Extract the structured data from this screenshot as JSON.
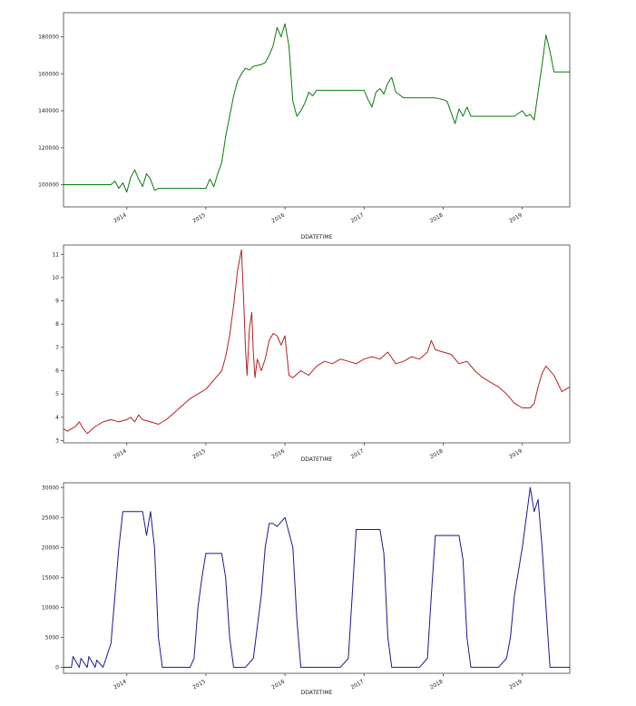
{
  "chart_data": [
    {
      "type": "line",
      "xlabel": "DDATETIME",
      "ylabel": "",
      "color": "#0a7a0a",
      "xlim": [
        2013.2,
        2019.6
      ],
      "ylim": [
        88000,
        193000
      ],
      "xticks": [
        {
          "x": 2014,
          "label": "2014"
        },
        {
          "x": 2015,
          "label": "2015"
        },
        {
          "x": 2016,
          "label": "2016"
        },
        {
          "x": 2017,
          "label": "2017"
        },
        {
          "x": 2018,
          "label": "2018"
        },
        {
          "x": 2019,
          "label": "2019"
        }
      ],
      "yticks": [
        {
          "y": 100000,
          "label": "100000"
        },
        {
          "y": 120000,
          "label": "120000"
        },
        {
          "y": 140000,
          "label": "140000"
        },
        {
          "y": 160000,
          "label": "160000"
        },
        {
          "y": 180000,
          "label": "180000"
        }
      ],
      "series": [
        {
          "x": [
            2013.2,
            2013.8,
            2013.85,
            2013.9,
            2013.95,
            2014.0,
            2014.05,
            2014.1,
            2014.15,
            2014.2,
            2014.25,
            2014.3,
            2014.35,
            2014.4,
            2014.7,
            2014.9,
            2015.0,
            2015.05,
            2015.1,
            2015.15,
            2015.2,
            2015.25,
            2015.3,
            2015.35,
            2015.4,
            2015.45,
            2015.5,
            2015.55,
            2015.6,
            2015.7,
            2015.75,
            2015.8,
            2015.85,
            2015.9,
            2015.95,
            2016.0,
            2016.05,
            2016.1,
            2016.15,
            2016.2,
            2016.25,
            2016.3,
            2016.35,
            2016.4,
            2016.5,
            2016.9,
            2017.0,
            2017.05,
            2017.1,
            2017.15,
            2017.2,
            2017.25,
            2017.3,
            2017.35,
            2017.4,
            2017.5,
            2017.9,
            2018.0,
            2018.05,
            2018.1,
            2018.15,
            2018.2,
            2018.25,
            2018.3,
            2018.35,
            2018.5,
            2018.9,
            2019.0,
            2019.05,
            2019.1,
            2019.15,
            2019.2,
            2019.25,
            2019.3,
            2019.35,
            2019.4,
            2019.6
          ],
          "y": [
            100000,
            100000,
            102000,
            98000,
            101000,
            96000,
            104000,
            108000,
            103000,
            99000,
            106000,
            103000,
            97000,
            98000,
            98000,
            98000,
            98000,
            103000,
            99000,
            106000,
            112000,
            126000,
            137000,
            148000,
            156000,
            160000,
            163000,
            162000,
            164000,
            165000,
            166000,
            170000,
            175000,
            185000,
            180000,
            187000,
            175000,
            145000,
            137000,
            140000,
            144000,
            150000,
            148000,
            151000,
            151000,
            151000,
            151000,
            146000,
            142000,
            150000,
            152000,
            149000,
            155000,
            158000,
            150000,
            147000,
            147000,
            146000,
            145000,
            139000,
            133000,
            141000,
            137000,
            142000,
            137000,
            137000,
            137000,
            140000,
            137000,
            138000,
            135000,
            150000,
            165000,
            181000,
            172000,
            161000,
            161000
          ]
        }
      ]
    },
    {
      "type": "line",
      "xlabel": "DDATETIME",
      "ylabel": "",
      "color": "#b22222",
      "xlim": [
        2013.2,
        2019.6
      ],
      "ylim": [
        2.9,
        11.4
      ],
      "xticks": [
        {
          "x": 2014,
          "label": "2014"
        },
        {
          "x": 2015,
          "label": "2015"
        },
        {
          "x": 2016,
          "label": "2016"
        },
        {
          "x": 2017,
          "label": "2017"
        },
        {
          "x": 2018,
          "label": "2018"
        },
        {
          "x": 2019,
          "label": "2019"
        }
      ],
      "yticks": [
        {
          "y": 3,
          "label": "3"
        },
        {
          "y": 4,
          "label": "4"
        },
        {
          "y": 5,
          "label": "5"
        },
        {
          "y": 6,
          "label": "6"
        },
        {
          "y": 7,
          "label": "7"
        },
        {
          "y": 8,
          "label": "8"
        },
        {
          "y": 9,
          "label": "9"
        },
        {
          "y": 10,
          "label": "10"
        },
        {
          "y": 11,
          "label": "11"
        }
      ],
      "series": [
        {
          "x": [
            2013.2,
            2013.25,
            2013.3,
            2013.35,
            2013.4,
            2013.45,
            2013.5,
            2013.6,
            2013.7,
            2013.8,
            2013.9,
            2014.0,
            2014.05,
            2014.1,
            2014.15,
            2014.2,
            2014.3,
            2014.4,
            2014.5,
            2014.6,
            2014.7,
            2014.8,
            2014.9,
            2015.0,
            2015.1,
            2015.2,
            2015.25,
            2015.3,
            2015.35,
            2015.4,
            2015.45,
            2015.48,
            2015.5,
            2015.52,
            2015.55,
            2015.58,
            2015.6,
            2015.62,
            2015.65,
            2015.7,
            2015.75,
            2015.8,
            2015.85,
            2015.9,
            2015.95,
            2016.0,
            2016.05,
            2016.1,
            2016.2,
            2016.3,
            2016.4,
            2016.5,
            2016.6,
            2016.7,
            2016.8,
            2016.9,
            2017.0,
            2017.1,
            2017.2,
            2017.3,
            2017.4,
            2017.5,
            2017.6,
            2017.7,
            2017.8,
            2017.85,
            2017.9,
            2018.0,
            2018.1,
            2018.2,
            2018.3,
            2018.4,
            2018.5,
            2018.6,
            2018.7,
            2018.8,
            2018.9,
            2019.0,
            2019.1,
            2019.15,
            2019.2,
            2019.25,
            2019.3,
            2019.4,
            2019.5,
            2019.6
          ],
          "y": [
            3.5,
            3.4,
            3.5,
            3.6,
            3.8,
            3.5,
            3.3,
            3.6,
            3.8,
            3.9,
            3.8,
            3.9,
            4.0,
            3.8,
            4.1,
            3.9,
            3.8,
            3.7,
            3.9,
            4.2,
            4.5,
            4.8,
            5.0,
            5.2,
            5.6,
            6.0,
            6.6,
            7.5,
            8.8,
            10.3,
            11.2,
            8.8,
            7.0,
            5.8,
            7.8,
            8.5,
            6.8,
            5.7,
            6.5,
            6.0,
            6.5,
            7.3,
            7.6,
            7.5,
            7.1,
            7.5,
            5.8,
            5.7,
            6.0,
            5.8,
            6.2,
            6.4,
            6.3,
            6.5,
            6.4,
            6.3,
            6.5,
            6.6,
            6.5,
            6.8,
            6.3,
            6.4,
            6.6,
            6.5,
            6.8,
            7.3,
            6.9,
            6.8,
            6.7,
            6.3,
            6.4,
            6.0,
            5.7,
            5.5,
            5.3,
            5.0,
            4.6,
            4.4,
            4.4,
            4.6,
            5.3,
            5.9,
            6.2,
            5.8,
            5.1,
            5.3
          ]
        }
      ]
    },
    {
      "type": "line",
      "xlabel": "DDATETIME",
      "ylabel": "",
      "color": "#1a1a8c",
      "xlim": [
        2013.2,
        2019.6
      ],
      "ylim": [
        -1000,
        30800
      ],
      "xticks": [
        {
          "x": 2014,
          "label": "2014"
        },
        {
          "x": 2015,
          "label": "2015"
        },
        {
          "x": 2016,
          "label": "2016"
        },
        {
          "x": 2017,
          "label": "2017"
        },
        {
          "x": 2018,
          "label": "2018"
        },
        {
          "x": 2019,
          "label": "2019"
        }
      ],
      "yticks": [
        {
          "y": 0,
          "label": "0"
        },
        {
          "y": 5000,
          "label": "5000"
        },
        {
          "y": 10000,
          "label": "10000"
        },
        {
          "y": 15000,
          "label": "15000"
        },
        {
          "y": 20000,
          "label": "20000"
        },
        {
          "y": 25000,
          "label": "25000"
        },
        {
          "y": 30000,
          "label": "30000"
        }
      ],
      "series": [
        {
          "x": [
            2013.2,
            2013.3,
            2013.32,
            2013.4,
            2013.42,
            2013.5,
            2013.52,
            2013.6,
            2013.62,
            2013.7,
            2013.75,
            2013.8,
            2013.85,
            2013.9,
            2013.95,
            2014.0,
            2014.2,
            2014.25,
            2014.3,
            2014.35,
            2014.4,
            2014.45,
            2014.5,
            2014.6,
            2014.7,
            2014.8,
            2014.85,
            2014.9,
            2014.95,
            2015.0,
            2015.2,
            2015.25,
            2015.3,
            2015.35,
            2015.4,
            2015.45,
            2015.5,
            2015.6,
            2015.7,
            2015.75,
            2015.8,
            2015.85,
            2015.9,
            2016.0,
            2016.1,
            2016.15,
            2016.2,
            2016.25,
            2016.3,
            2016.35,
            2016.4,
            2016.5,
            2016.6,
            2016.7,
            2016.8,
            2016.85,
            2016.9,
            2017.0,
            2017.2,
            2017.25,
            2017.3,
            2017.35,
            2017.4,
            2017.5,
            2017.6,
            2017.7,
            2017.8,
            2017.85,
            2017.9,
            2018.0,
            2018.2,
            2018.25,
            2018.3,
            2018.35,
            2018.4,
            2018.5,
            2018.6,
            2018.7,
            2018.8,
            2018.85,
            2018.9,
            2019.0,
            2019.1,
            2019.15,
            2019.2,
            2019.25,
            2019.3,
            2019.35,
            2019.4,
            2019.45,
            2019.5,
            2019.6
          ],
          "y": [
            0,
            0,
            1800,
            0,
            1500,
            0,
            1800,
            0,
            1200,
            0,
            2000,
            4000,
            12000,
            20000,
            26000,
            26000,
            26000,
            22000,
            26000,
            20000,
            5000,
            0,
            0,
            0,
            0,
            0,
            1500,
            10000,
            15000,
            19000,
            19000,
            15000,
            5000,
            0,
            0,
            0,
            0,
            1500,
            12000,
            20000,
            24000,
            24000,
            23500,
            25000,
            20000,
            8000,
            0,
            0,
            0,
            0,
            0,
            0,
            0,
            0,
            1500,
            12000,
            23000,
            23000,
            23000,
            19000,
            5000,
            0,
            0,
            0,
            0,
            0,
            1500,
            12000,
            22000,
            22000,
            22000,
            18000,
            5000,
            0,
            0,
            0,
            0,
            0,
            1500,
            5000,
            12000,
            20000,
            30000,
            26000,
            28000,
            20000,
            10000,
            0,
            0,
            0,
            0,
            0
          ]
        }
      ]
    }
  ]
}
